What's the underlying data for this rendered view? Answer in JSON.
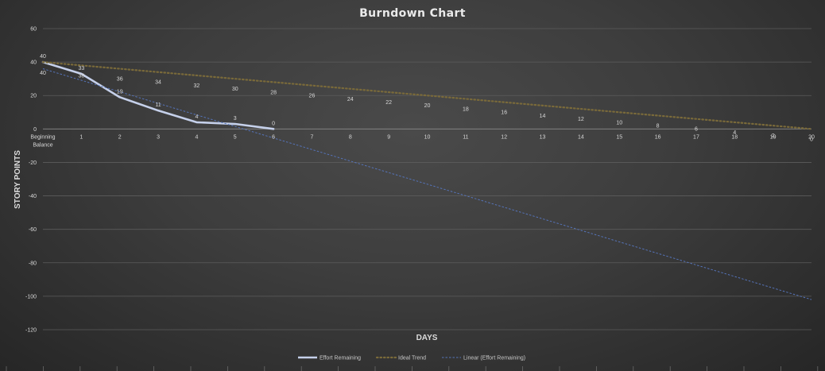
{
  "chart_data": {
    "type": "line",
    "title": "Burndown Chart",
    "xlabel": "DAYS",
    "ylabel": "STORY POINTS",
    "categories": [
      "Beginning\nBalance",
      "1",
      "2",
      "3",
      "4",
      "5",
      "6",
      "7",
      "8",
      "9",
      "10",
      "11",
      "12",
      "13",
      "14",
      "15",
      "16",
      "17",
      "18",
      "19",
      "20"
    ],
    "ylim": [
      -120,
      60
    ],
    "yticks": [
      60,
      40,
      20,
      0,
      -20,
      -40,
      -60,
      -80,
      -100,
      -120
    ],
    "grid": true,
    "legend_position": "bottom",
    "series": [
      {
        "name": "Effort Remaining",
        "color": "#c5d0ea",
        "style": "solid",
        "values": [
          40,
          33,
          19,
          11,
          4,
          3,
          0,
          null,
          null,
          null,
          null,
          null,
          null,
          null,
          null,
          null,
          null,
          null,
          null,
          null,
          null
        ]
      },
      {
        "name": "Ideal Trend",
        "color": "#7a6a3a",
        "style": "dotted",
        "values": [
          40,
          38,
          36,
          34,
          32,
          30,
          28,
          26,
          24,
          22,
          20,
          18,
          16,
          14,
          12,
          10,
          8,
          6,
          4,
          2,
          0
        ]
      },
      {
        "name": "Linear (Effort Remaining)",
        "color": "#5573b8",
        "style": "dashed",
        "trendline": {
          "start": 36,
          "end": -102
        }
      }
    ],
    "labels": {
      "Effort Remaining": [
        "40",
        "33",
        "19",
        "11",
        "4",
        "3",
        "0"
      ],
      "Ideal Trend": [
        "40",
        "38",
        "36",
        "34",
        "32",
        "30",
        "28",
        "26",
        "24",
        "22",
        "20",
        "18",
        "16",
        "14",
        "12",
        "10",
        "8",
        "6",
        "4",
        "2",
        "0"
      ]
    }
  }
}
